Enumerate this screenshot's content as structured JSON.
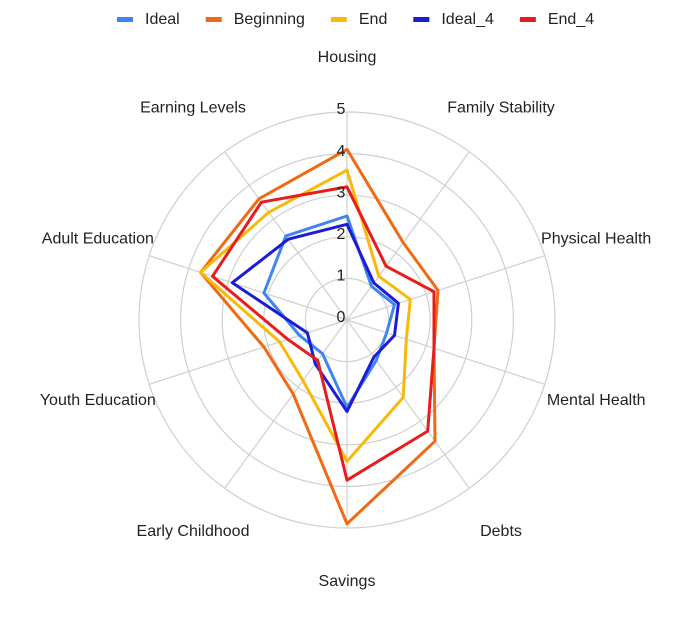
{
  "chart_data": {
    "type": "radar",
    "categories": [
      "Housing",
      "Family Stability",
      "Physical Health",
      "Mental Health",
      "Debts",
      "Savings",
      "Early Childhood",
      "Youth Education",
      "Adult Education",
      "Earning Levels"
    ],
    "series": [
      {
        "name": "Ideal",
        "color": "#3d85f0",
        "values": [
          2.5,
          1.0,
          1.2,
          1.0,
          1.2,
          2.1,
          1.0,
          1.2,
          2.1,
          2.5
        ]
      },
      {
        "name": "Beginning",
        "color": "#f06a14",
        "values": [
          4.1,
          2.3,
          2.3,
          2.2,
          3.6,
          4.9,
          2.2,
          2.1,
          3.7,
          3.6
        ]
      },
      {
        "name": "End",
        "color": "#f9b90a",
        "values": [
          3.6,
          1.3,
          1.6,
          1.5,
          2.3,
          3.4,
          1.8,
          1.7,
          3.7,
          3.2
        ]
      },
      {
        "name": "Ideal_4",
        "color": "#1c1cd8",
        "values": [
          2.3,
          1.1,
          1.3,
          1.2,
          1.1,
          2.2,
          1.3,
          1.0,
          2.9,
          2.4
        ]
      },
      {
        "name": "End_4",
        "color": "#e81c1c",
        "values": [
          3.2,
          1.6,
          2.2,
          2.2,
          3.3,
          3.85,
          1.2,
          1.5,
          3.4,
          3.5
        ]
      }
    ],
    "ylim": [
      0,
      5
    ],
    "yticks": [
      0,
      1,
      2,
      3,
      4,
      5
    ],
    "grid": true,
    "legend": "top"
  }
}
